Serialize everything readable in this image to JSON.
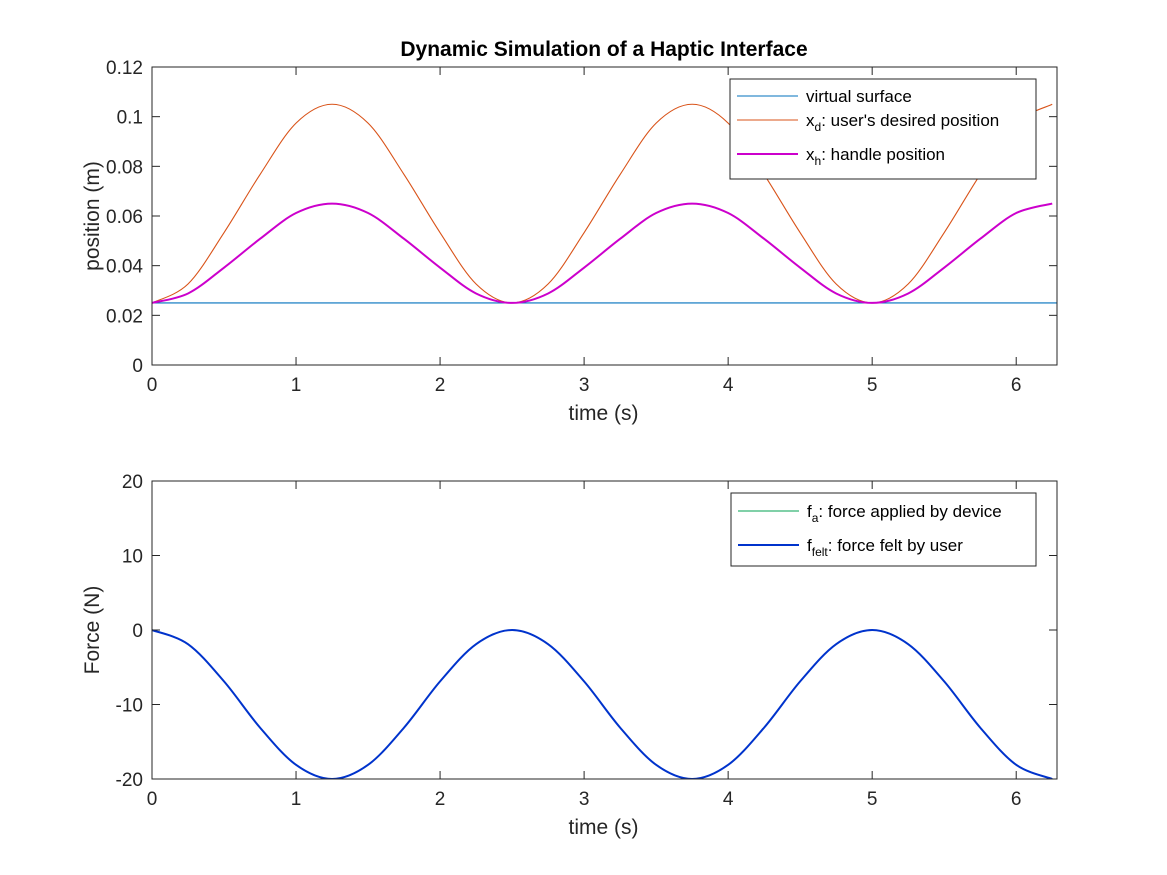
{
  "figure": {
    "title": "Dynamic Simulation of a Haptic Interface"
  },
  "chart_data": [
    {
      "type": "line",
      "title": "Dynamic Simulation of a Haptic Interface",
      "xlabel": "time (s)",
      "ylabel": "position (m)",
      "xlim": [
        0,
        6.2832
      ],
      "ylim": [
        0,
        0.12
      ],
      "xticks": [
        0,
        1,
        2,
        3,
        4,
        5,
        6
      ],
      "yticks": [
        0,
        0.02,
        0.04,
        0.06,
        0.08,
        0.1,
        0.12
      ],
      "xtick_labels": [
        "0",
        "1",
        "2",
        "3",
        "4",
        "5",
        "6"
      ],
      "ytick_labels": [
        "0",
        "0.02",
        "0.04",
        "0.06",
        "0.08",
        "0.1",
        "0.12"
      ],
      "grid": false,
      "legend_position": "top-right",
      "series": [
        {
          "legend_main": "virtual surface",
          "legend_sub": "",
          "legend_rest": "",
          "color": "#0072BD",
          "x": [
            0,
            6.2832
          ],
          "y": [
            0.025,
            0.025
          ]
        },
        {
          "legend_main": "x",
          "legend_sub": "d",
          "legend_rest": ": user's desired position",
          "color": "#D95319",
          "x": [
            0,
            0.25,
            0.5,
            0.75,
            1.0,
            1.25,
            1.5,
            1.75,
            2.0,
            2.25,
            2.5,
            2.75,
            3.0,
            3.25,
            3.5,
            3.75,
            4.0,
            4.25,
            4.5,
            4.75,
            5.0,
            5.25,
            5.5,
            5.75,
            6.0,
            6.25
          ],
          "y": [
            0.025,
            0.0326,
            0.0533,
            0.0767,
            0.0974,
            0.105,
            0.0974,
            0.0767,
            0.0533,
            0.0326,
            0.025,
            0.0326,
            0.0533,
            0.0767,
            0.0974,
            0.105,
            0.0974,
            0.0767,
            0.0533,
            0.0326,
            0.025,
            0.0326,
            0.0533,
            0.0767,
            0.0974,
            0.105
          ]
        },
        {
          "legend_main": "x",
          "legend_sub": "h",
          "legend_rest": ": handle position",
          "color": "#CC00CC",
          "x": [
            0,
            0.25,
            0.5,
            0.75,
            1.0,
            1.25,
            1.5,
            1.75,
            2.0,
            2.25,
            2.5,
            2.75,
            3.0,
            3.25,
            3.5,
            3.75,
            4.0,
            4.25,
            4.5,
            4.75,
            5.0,
            5.25,
            5.5,
            5.75,
            6.0,
            6.25
          ],
          "y": [
            0.025,
            0.0288,
            0.0392,
            0.0508,
            0.0612,
            0.065,
            0.0612,
            0.0508,
            0.0392,
            0.0288,
            0.025,
            0.0288,
            0.0392,
            0.0508,
            0.0612,
            0.065,
            0.0612,
            0.0508,
            0.0392,
            0.0288,
            0.025,
            0.0288,
            0.0392,
            0.0508,
            0.0612,
            0.065
          ]
        }
      ]
    },
    {
      "type": "line",
      "title": "",
      "xlabel": "time (s)",
      "ylabel": "Force (N)",
      "xlim": [
        0,
        6.2832
      ],
      "ylim": [
        -20,
        20
      ],
      "xticks": [
        0,
        1,
        2,
        3,
        4,
        5,
        6
      ],
      "yticks": [
        -20,
        -10,
        0,
        10,
        20
      ],
      "xtick_labels": [
        "0",
        "1",
        "2",
        "3",
        "4",
        "5",
        "6"
      ],
      "ytick_labels": [
        "-20",
        "-10",
        "0",
        "10",
        "20"
      ],
      "grid": false,
      "legend_position": "top-right",
      "series": [
        {
          "legend_main": "f",
          "legend_sub": "a",
          "legend_rest": ": force applied by device",
          "color": "#00A050",
          "x": [
            0,
            0.25,
            0.5,
            0.75,
            1.0,
            1.25,
            1.5,
            1.75,
            2.0,
            2.25,
            2.5,
            2.75,
            3.0,
            3.25,
            3.5,
            3.75,
            4.0,
            4.25,
            4.5,
            4.75,
            5.0,
            5.25,
            5.5,
            5.75,
            6.0,
            6.25
          ],
          "y": [
            0,
            -1.9,
            -6.9,
            -13.1,
            -18.1,
            -20,
            -18.1,
            -13.1,
            -6.9,
            -1.9,
            0,
            -1.9,
            -6.9,
            -13.1,
            -18.1,
            -20,
            -18.1,
            -13.1,
            -6.9,
            -1.9,
            0,
            -1.9,
            -6.9,
            -13.1,
            -18.1,
            -20
          ]
        },
        {
          "legend_main": "f",
          "legend_sub": "felt",
          "legend_rest": ": force felt by user",
          "color": "#0033CC",
          "x": [
            0,
            0.25,
            0.5,
            0.75,
            1.0,
            1.25,
            1.5,
            1.75,
            2.0,
            2.25,
            2.5,
            2.75,
            3.0,
            3.25,
            3.5,
            3.75,
            4.0,
            4.25,
            4.5,
            4.75,
            5.0,
            5.25,
            5.5,
            5.75,
            6.0,
            6.25
          ],
          "y": [
            0,
            -1.9,
            -6.9,
            -13.1,
            -18.1,
            -20,
            -18.1,
            -13.1,
            -6.9,
            -1.9,
            0,
            -1.9,
            -6.9,
            -13.1,
            -18.1,
            -20,
            -18.1,
            -13.1,
            -6.9,
            -1.9,
            0,
            -1.9,
            -6.9,
            -13.1,
            -18.1,
            -20
          ]
        }
      ]
    }
  ]
}
